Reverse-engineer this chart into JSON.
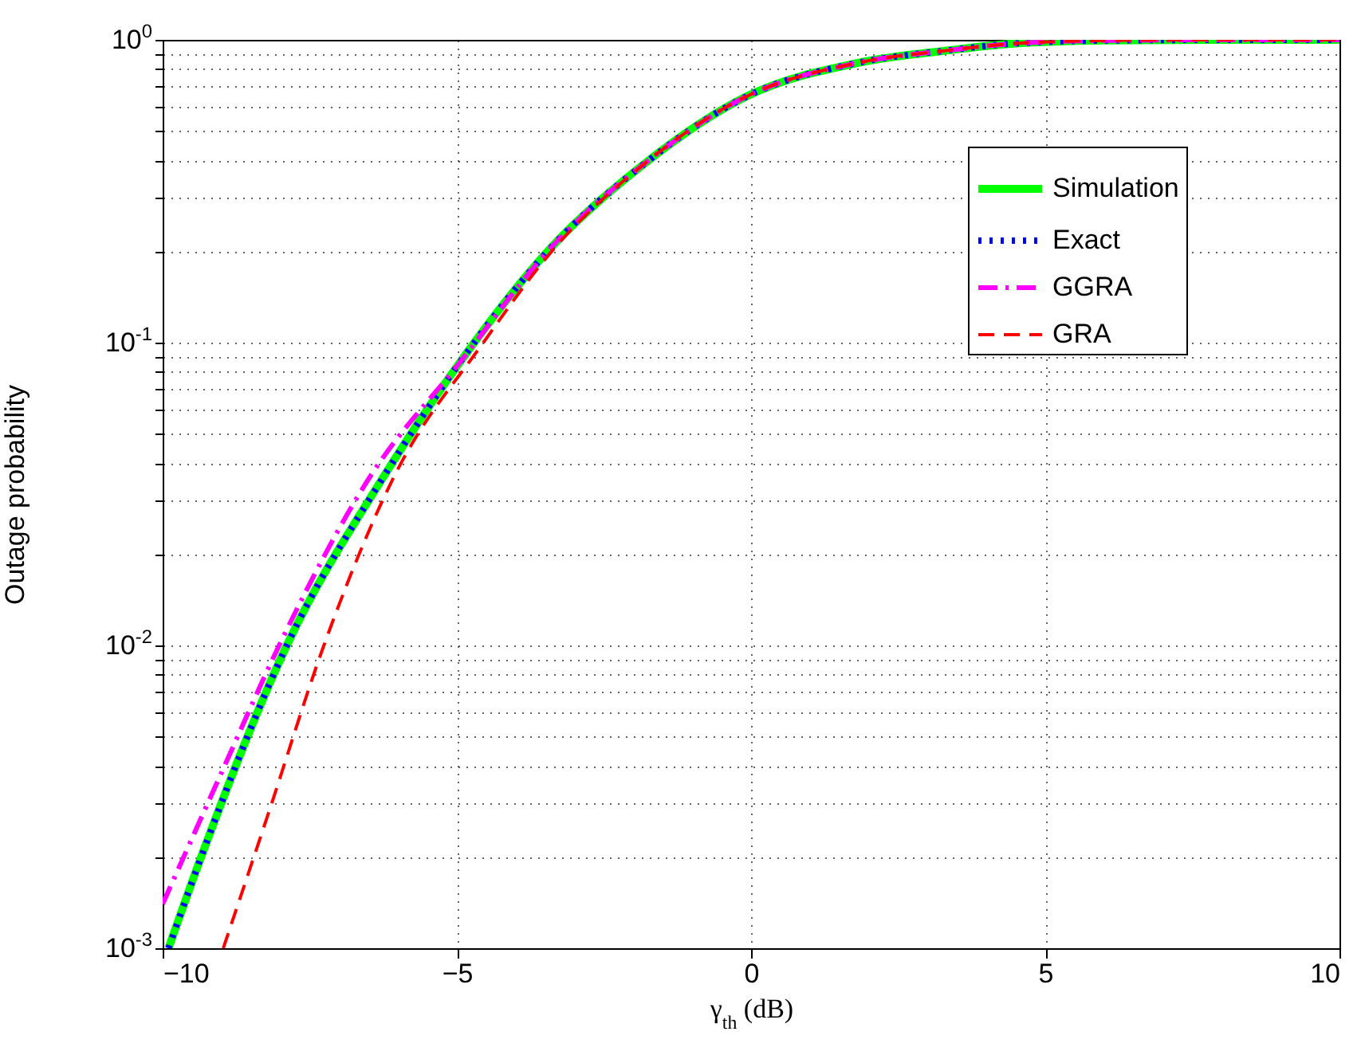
{
  "chart_data": {
    "type": "line",
    "xlabel": "γ$_{th}$ (dB)",
    "ylabel": "Outage probability",
    "xlim": [
      -10,
      10
    ],
    "xticks": [
      -10,
      -5,
      0,
      5,
      10
    ],
    "ylim": [
      0.001,
      1
    ],
    "log": true,
    "yticks": [
      {
        "value": 0.001,
        "label": "10$^{-3}$"
      },
      {
        "value": 0.002,
        "label": null
      },
      {
        "value": 0.003,
        "label": null
      },
      {
        "value": 0.004,
        "label": null
      },
      {
        "value": 0.005,
        "label": null
      },
      {
        "value": 0.006,
        "label": null
      },
      {
        "value": 0.007,
        "label": null
      },
      {
        "value": 0.008,
        "label": null
      },
      {
        "value": 0.009,
        "label": null
      },
      {
        "value": 0.01,
        "label": "10$^{-2}$"
      },
      {
        "value": 0.02,
        "label": null
      },
      {
        "value": 0.03,
        "label": null
      },
      {
        "value": 0.04,
        "label": null
      },
      {
        "value": 0.05,
        "label": null
      },
      {
        "value": 0.06,
        "label": null
      },
      {
        "value": 0.07,
        "label": null
      },
      {
        "value": 0.08,
        "label": null
      },
      {
        "value": 0.09,
        "label": null
      },
      {
        "value": 0.1,
        "label": "10$^{-1}$"
      },
      {
        "value": 0.2,
        "label": null
      },
      {
        "value": 0.3,
        "label": null
      },
      {
        "value": 0.4,
        "label": null
      },
      {
        "value": 0.5,
        "label": null
      },
      {
        "value": 0.6,
        "label": null
      },
      {
        "value": 0.7,
        "label": null
      },
      {
        "value": 0.8,
        "label": null
      },
      {
        "value": 0.9,
        "label": null
      },
      {
        "value": 1,
        "label": "10$^{0}$"
      }
    ],
    "grid": true,
    "legend": "top right",
    "series": [
      {
        "name": "Simulation",
        "color": "#00ff00",
        "line_style": "solid",
        "x": [
          -9.9,
          -9.33,
          -7.89,
          -6.26,
          -4.96,
          -3.39,
          -1.82,
          -0.05,
          1.82,
          3.39,
          4.4,
          6,
          8,
          10
        ],
        "values": [
          0.001,
          0.00204,
          0.01,
          0.0357,
          0.0855,
          0.207,
          0.389,
          0.654,
          0.84,
          0.925,
          0.97,
          0.995,
          1,
          1
        ]
      },
      {
        "name": "Exact",
        "color": "#0000ff",
        "line_style": "dotted",
        "x": [
          -9.9,
          -9.33,
          -7.89,
          -6.26,
          -4.96,
          -3.39,
          -1.82,
          -0.05,
          1.82,
          3.39,
          4.4,
          6,
          8,
          10
        ],
        "values": [
          0.001,
          0.00204,
          0.01,
          0.0357,
          0.0855,
          0.207,
          0.389,
          0.654,
          0.84,
          0.925,
          0.97,
          0.995,
          1,
          1
        ]
      },
      {
        "name": "GGRA",
        "color": "#ff00ff",
        "line_style": "dashdot",
        "x": [
          -10,
          -9,
          -8.02,
          -6.49,
          -4.96,
          -3.39,
          -1.82,
          -0.05,
          1.82,
          3.39,
          4.4,
          6,
          8,
          10
        ],
        "values": [
          0.0014,
          0.0038,
          0.01,
          0.0357,
          0.0855,
          0.207,
          0.389,
          0.654,
          0.84,
          0.925,
          0.97,
          0.995,
          1,
          1
        ]
      },
      {
        "name": "GRA",
        "color": "#ff0000",
        "line_style": "dashed",
        "x": [
          -8.97,
          -8.2,
          -7.26,
          -6.08,
          -4.55,
          -3.39,
          -1.82,
          -0.05,
          1.82,
          3.39,
          4.4,
          6,
          8,
          10
        ],
        "values": [
          0.001,
          0.0028,
          0.01,
          0.0357,
          0.1,
          0.2,
          0.389,
          0.654,
          0.84,
          0.925,
          0.97,
          0.995,
          1,
          1
        ]
      }
    ]
  }
}
